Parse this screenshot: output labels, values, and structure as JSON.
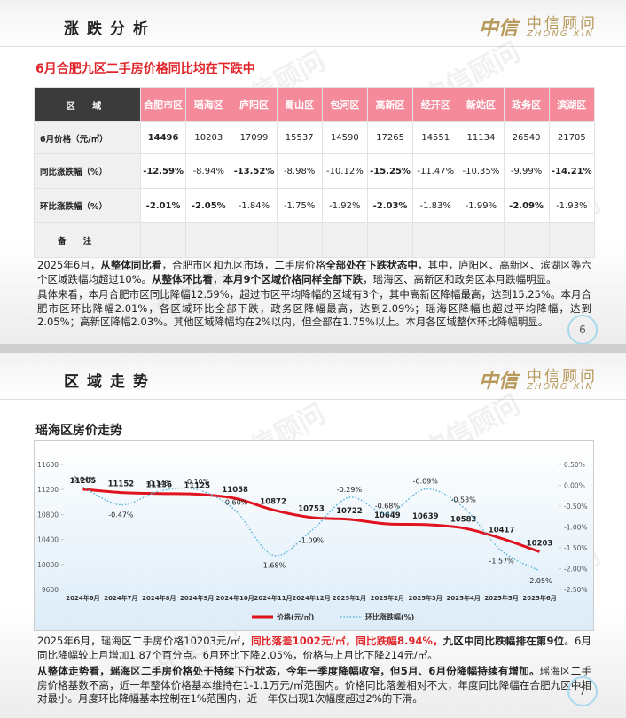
{
  "logo": {
    "mark": "中信",
    "name": "中信顾问",
    "latin": "ZHONG XIN"
  },
  "watermark": "中信顾问",
  "slides": [
    {
      "header": "涨跌分析",
      "subtitle": "6月合肥九区二手房价格同比均在下跌中",
      "page": 6,
      "table": {
        "header": [
          "区 域",
          "合肥市区",
          "瑶海区",
          "庐阳区",
          "蜀山区",
          "包河区",
          "高新区",
          "经开区",
          "新站区",
          "政务区",
          "滨湖区"
        ],
        "rows": [
          [
            "6月价格（元/㎡）",
            14496,
            10203,
            17099,
            15537,
            14590,
            17265,
            14551,
            11134,
            26540,
            21705
          ],
          [
            "同比涨跌幅（%）",
            "-12.59%",
            "-8.94%",
            "-13.52%",
            "-8.98%",
            "-10.12%",
            "-15.25%",
            "-11.47%",
            "-10.35%",
            "-9.99%",
            "-14.21%"
          ],
          [
            "环比涨跌幅（%）",
            "-2.01%",
            "-2.05%",
            "-1.84%",
            "-1.75%",
            "-1.92%",
            "-2.03%",
            "-1.83%",
            "-1.99%",
            "-2.09%",
            "-1.93%"
          ],
          [
            "备 注"
          ]
        ]
      },
      "paragraphs": [
        [
          {
            "text": "2025年6月，"
          },
          {
            "text": "从整体同比看",
            "bold": true
          },
          {
            "text": "，合肥市区和九区市场，二手房价格"
          },
          {
            "text": "全部处在下跌状态中",
            "bold": true
          },
          {
            "text": "，其中，庐阳区、高新区、滨湖区等六个区域跌幅均超过10%。"
          },
          {
            "text": "从整体环比看",
            "bold": true
          },
          {
            "text": "，"
          },
          {
            "text": "本月9个区域价格同样全部下跌",
            "bold": true
          },
          {
            "text": "，瑶海区、高新区和政务区本月跌幅明显。"
          }
        ],
        [
          {
            "text": "具体来看，本月合肥市区同比降幅12.59%，超过市区平均降幅的区域有3个，其中高新区降幅最高，达到15.25%。本月合肥市区环比降幅2.01%，各区域环比全部下跌，政务区降幅最高，达到2.09%；瑶海区降幅也超过平均降幅，达到2.05%；高新区降幅2.03%。其他区域降幅均在2%以内，但全部在1.75%以上。本月各区域整体环比降幅明显。"
          }
        ]
      ]
    },
    {
      "header": "区域走势",
      "subtitle": "瑶海区房价走势",
      "page": 7,
      "paragraphs": [
        [
          {
            "text": "2025年6月，瑶海区二手房价格10203元/㎡，"
          },
          {
            "text": "同比落差1002元/㎡，同比跌幅8.94%，",
            "bold": true,
            "color": "#e0262b"
          },
          {
            "text": "九区中同比跌幅排在第9位",
            "bold": true
          },
          {
            "text": "。6月同比降幅较上月增加1.87个百分点。6月环比下降2.05%，价格与上月比下降214元/㎡。"
          }
        ],
        [
          {
            "text": "从整体走势看，瑶海区二手房价格处于持续下行状态，今年一季度降幅收窄，但5月、6月份降幅持续有增加。",
            "bold": true
          },
          {
            "text": "瑶海区二手房价格基数不高，近一年整体价格基本维持在1-1.1万元/㎡范围内。价格同比落差相对不大，年度同比降幅在合肥九区中相对最小。月度环比降幅基本控制在1%范围内，近一年仅出现1次幅度超过2%的下滑。"
          }
        ]
      ]
    }
  ],
  "chart_data": {
    "type": "line",
    "categories": [
      "2024年6月",
      "2024年7月",
      "2024年8月",
      "2024年9月",
      "2024年10月",
      "2024年11月",
      "2024年12月",
      "2025年1月",
      "2025年2月",
      "2025年3月",
      "2025年4月",
      "2025年5月",
      "2025年6月"
    ],
    "series": [
      {
        "name": "价格(元/㎡)",
        "color": "#e0141e",
        "values": [
          11205,
          11152,
          11136,
          11125,
          11058,
          10872,
          10753,
          10722,
          10649,
          10639,
          10583,
          10417,
          10203
        ]
      },
      {
        "name": "环比涨跌幅(%)",
        "color": "#5ab4dc",
        "axis": "y2",
        "dashed": true,
        "values": [
          -0.04,
          -0.47,
          -0.14,
          -0.1,
          -0.6,
          -1.68,
          -1.09,
          -0.29,
          -0.68,
          -0.09,
          -0.53,
          -1.57,
          -2.05
        ],
        "value_labels": [
          "-0.04%",
          "-0.47%",
          "-0.14%",
          "-0.10%",
          "-0.60%",
          "-1.68%",
          "-1.09%",
          "-0.29%",
          "-0.68%",
          "-0.09%",
          "-0.53%",
          "-1.57%",
          "-2.05%"
        ]
      }
    ],
    "ylim": [
      9600,
      11600
    ],
    "yticks": [
      9600,
      10000,
      10400,
      10800,
      11200,
      11600
    ],
    "y2lim": [
      -2.5,
      0.5
    ],
    "y2ticks": [
      {
        "value": 0.5,
        "label": "0.50%"
      },
      {
        "value": 0,
        "label": "0.00%"
      },
      {
        "value": -0.5,
        "label": "-0.50%"
      },
      {
        "value": -1,
        "label": "-1.00%"
      },
      {
        "value": -1.5,
        "label": "-1.50%"
      },
      {
        "value": -2,
        "label": "-2.00%"
      },
      {
        "value": -2.5,
        "label": "-2.50%"
      }
    ],
    "legend": "bottom"
  }
}
